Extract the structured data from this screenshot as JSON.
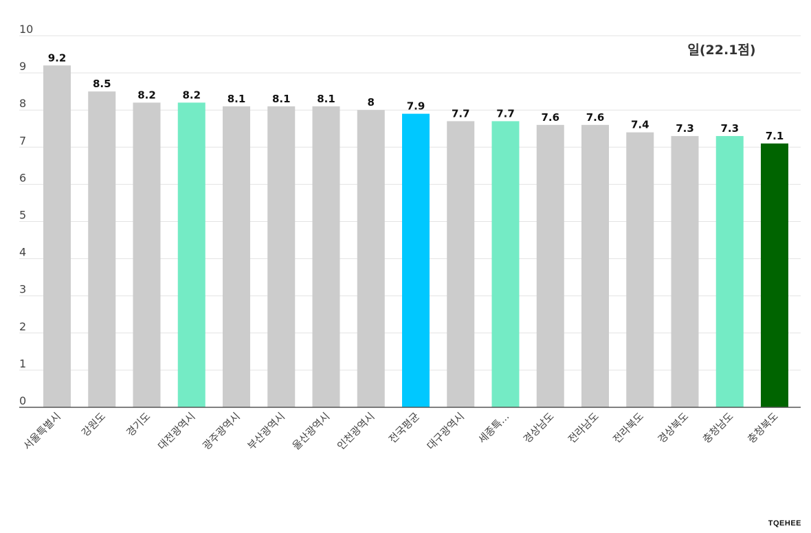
{
  "chart_data": {
    "type": "bar",
    "categories": [
      "서울특별시",
      "강원도",
      "경기도",
      "대전광역시",
      "광주광역시",
      "부산광역시",
      "울산광역시",
      "인천광역시",
      "전국평균",
      "대구광역시",
      "세종특...",
      "경상남도",
      "전라남도",
      "전라북도",
      "경상북도",
      "충청남도",
      "충청북도"
    ],
    "values": [
      9.2,
      8.5,
      8.2,
      8.2,
      8.1,
      8.1,
      8.1,
      8,
      7.9,
      7.7,
      7.7,
      7.6,
      7.6,
      7.4,
      7.3,
      7.3,
      7.1
    ],
    "value_labels": [
      "9.2",
      "8.5",
      "8.2",
      "8.2",
      "8.1",
      "8.1",
      "8.1",
      "8",
      "7.9",
      "7.7",
      "7.7",
      "7.6",
      "7.6",
      "7.4",
      "7.3",
      "7.3",
      "7.1"
    ],
    "colors": [
      "#cccccc",
      "#cccccc",
      "#cccccc",
      "#74ebc5",
      "#cccccc",
      "#cccccc",
      "#cccccc",
      "#cccccc",
      "#00c8ff",
      "#cccccc",
      "#74ebc5",
      "#cccccc",
      "#cccccc",
      "#cccccc",
      "#cccccc",
      "#74ebc5",
      "#006400"
    ],
    "ylim": [
      0,
      10
    ],
    "yticks": [
      "0",
      "1",
      "2",
      "3",
      "4",
      "5",
      "6",
      "7",
      "8",
      "9",
      "10"
    ],
    "grid": true,
    "annotation": "일(22.1점)",
    "title": "",
    "xlabel": "",
    "ylabel": ""
  },
  "brand": "TQEHEE"
}
